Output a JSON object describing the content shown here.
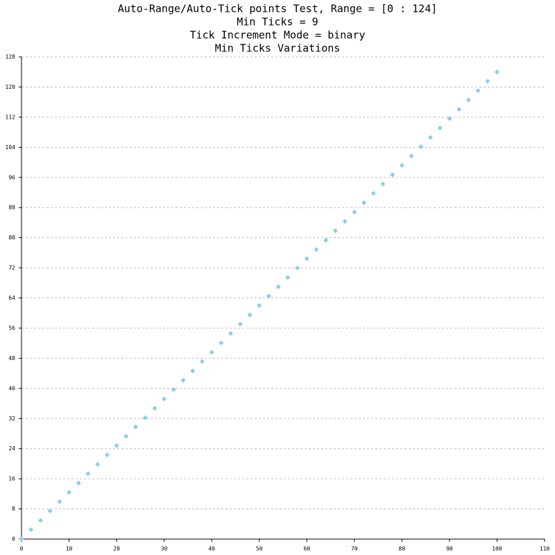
{
  "chart_data": {
    "type": "scatter",
    "title": [
      "Auto-Range/Auto-Tick points Test, Range = [0 : 124]",
      "Min Ticks = 9",
      "Tick Increment Mode = binary",
      "Min Ticks Variations"
    ],
    "x": [
      0,
      2,
      4,
      6,
      8,
      10,
      12,
      14,
      16,
      18,
      20,
      22,
      24,
      26,
      28,
      30,
      32,
      34,
      36,
      38,
      40,
      42,
      44,
      46,
      48,
      50,
      52,
      54,
      56,
      58,
      60,
      62,
      64,
      66,
      68,
      70,
      72,
      74,
      76,
      78,
      80,
      82,
      84,
      86,
      88,
      90,
      92,
      94,
      96,
      98,
      100
    ],
    "values": [
      0,
      2.48,
      4.96,
      7.44,
      9.92,
      12.4,
      14.88,
      17.36,
      19.84,
      22.32,
      24.8,
      27.28,
      29.76,
      32.24,
      34.72,
      37.2,
      39.68,
      42.16,
      44.64,
      47.12,
      49.6,
      52.08,
      54.56,
      57.04,
      59.52,
      62,
      64.48,
      66.96,
      69.44,
      71.92,
      74.4,
      76.88,
      79.36,
      81.84,
      84.32,
      86.8,
      89.28,
      91.76,
      94.24,
      96.72,
      99.2,
      101.68,
      104.16,
      106.64,
      109.12,
      111.6,
      114.08,
      116.56,
      119.04,
      121.52,
      124
    ],
    "color": "#87ceeb",
    "xlim": [
      0,
      110
    ],
    "xticks": [
      0,
      10,
      20,
      30,
      40,
      50,
      60,
      70,
      80,
      90,
      100,
      110
    ],
    "ylim": [
      0,
      128
    ],
    "yticks": [
      0,
      8,
      16,
      24,
      32,
      40,
      48,
      56,
      64,
      72,
      80,
      88,
      96,
      104,
      112,
      120,
      128
    ],
    "grid": true
  }
}
